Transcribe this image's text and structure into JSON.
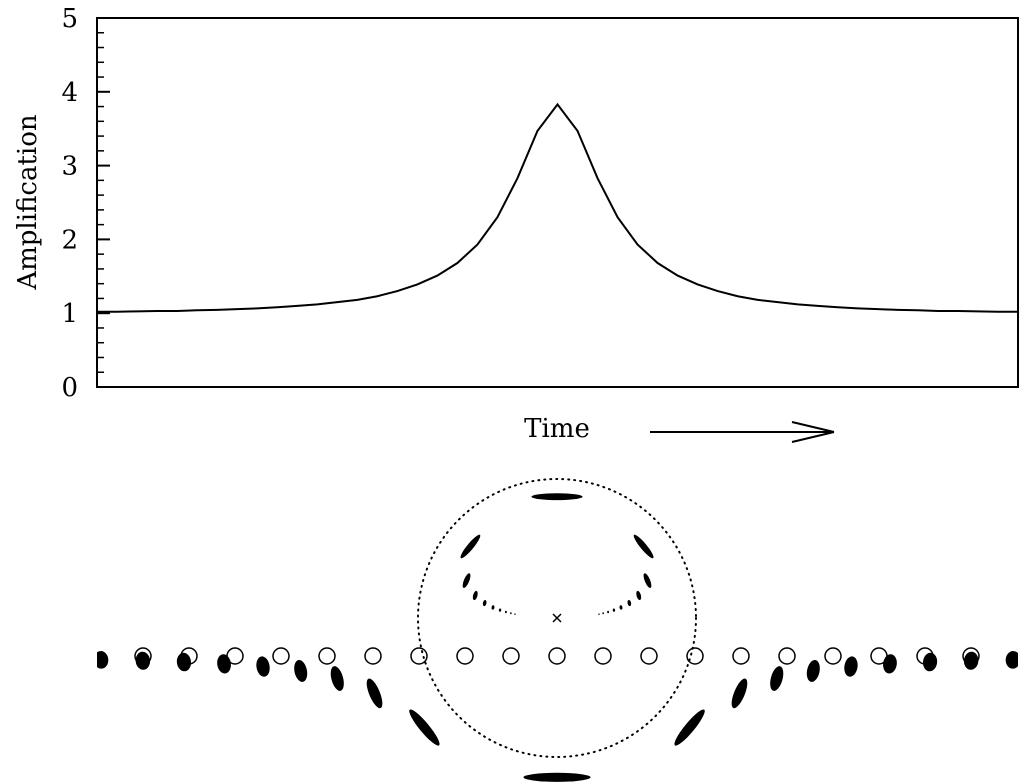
{
  "chart_data": {
    "type": "line",
    "ylabel": "Amplification",
    "xlabel": "Time",
    "categories": [
      null,
      null,
      null,
      null,
      null,
      null,
      null,
      null,
      null,
      null,
      null,
      null,
      null,
      null,
      null,
      null,
      null,
      null,
      null,
      null,
      null,
      null,
      null,
      null,
      null,
      null,
      null,
      null,
      null,
      null,
      null,
      null,
      null,
      null,
      null,
      null,
      null,
      null,
      null,
      null,
      null,
      null,
      null,
      null,
      null,
      null,
      null
    ],
    "values": [
      1.02,
      1.02,
      1.025,
      1.03,
      1.03,
      1.04,
      1.045,
      1.055,
      1.065,
      1.08,
      1.1,
      1.12,
      1.15,
      1.18,
      1.23,
      1.3,
      1.39,
      1.51,
      1.68,
      1.93,
      2.3,
      2.83,
      3.47,
      3.83,
      3.47,
      2.83,
      2.3,
      1.93,
      1.68,
      1.51,
      1.39,
      1.3,
      1.23,
      1.18,
      1.15,
      1.12,
      1.1,
      1.08,
      1.065,
      1.055,
      1.045,
      1.04,
      1.03,
      1.03,
      1.025,
      1.02,
      1.02
    ],
    "color": "#000000",
    "ylim": [
      0,
      5
    ],
    "yticks": [
      0,
      1,
      2,
      3,
      4,
      5
    ]
  }
}
